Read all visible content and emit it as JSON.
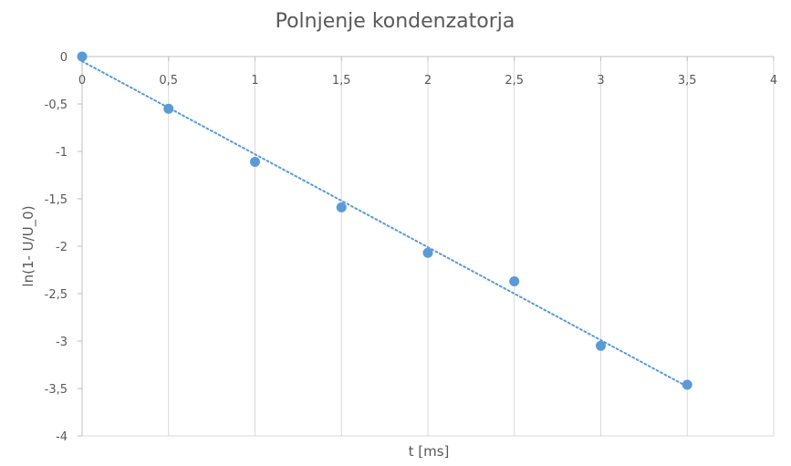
{
  "chart_data": {
    "type": "scatter",
    "title": "Polnjenje kondenzatorja",
    "xlabel": "t [ms]",
    "ylabel": "ln(1-  U/U_0)",
    "xlim": [
      0,
      4
    ],
    "ylim": [
      -4,
      0
    ],
    "x_ticks": [
      "0",
      "0,5",
      "1",
      "1,5",
      "2",
      "2,5",
      "3",
      "3,5",
      "4"
    ],
    "y_ticks": [
      "0",
      "-0,5",
      "-1",
      "-1,5",
      "-2",
      "-2,5",
      "-3",
      "-3,5",
      "-4"
    ],
    "x_tick_values": [
      0,
      0.5,
      1,
      1.5,
      2,
      2.5,
      3,
      3.5,
      4
    ],
    "y_tick_values": [
      0,
      -0.5,
      -1,
      -1.5,
      -2,
      -2.5,
      -3,
      -3.5,
      -4
    ],
    "grid": "vertical",
    "legend": "none",
    "series": [
      {
        "x": [
          0,
          0.5,
          1,
          1.5,
          2,
          2.5,
          3,
          3.5
        ],
        "y": [
          0,
          -0.55,
          -1.11,
          -1.59,
          -2.07,
          -2.37,
          -3.05,
          -3.46
        ],
        "color": "#5B9BD5"
      }
    ],
    "trendline": {
      "type": "linear",
      "style": "dotted",
      "x": [
        0,
        3.5
      ],
      "y": [
        -0.05,
        -3.48
      ],
      "color": "#5B9BD5"
    },
    "colors": {
      "grid": "#D9D9D9",
      "axis": "#BFBFBF",
      "text": "#595959"
    }
  }
}
